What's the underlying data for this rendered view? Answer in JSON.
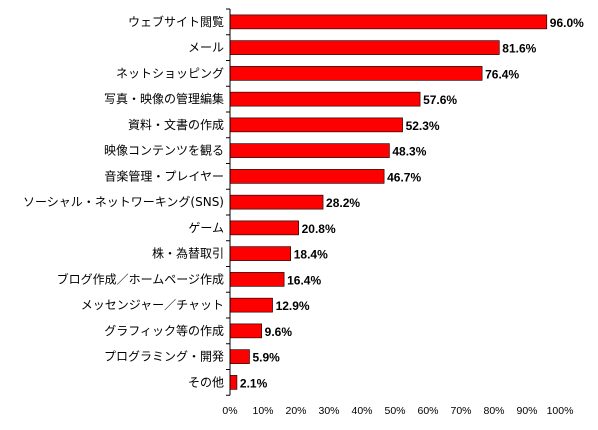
{
  "chart_data": {
    "type": "bar",
    "orientation": "horizontal",
    "categories": [
      "ウェブサイト閲覧",
      "メール",
      "ネットショッピング",
      "写真・映像の管理編集",
      "資料・文書の作成",
      "映像コンテンツを観る",
      "音楽管理・プレイヤー",
      "ソーシャル・ネットワーキング(SNS)",
      "ゲーム",
      "株・為替取引",
      "ブログ作成／ホームページ作成",
      "メッセンジャー／チャット",
      "グラフィック等の作成",
      "プログラミング・開発",
      "その他"
    ],
    "values": [
      96.0,
      81.6,
      76.4,
      57.6,
      52.3,
      48.3,
      46.7,
      28.2,
      20.8,
      18.4,
      16.4,
      12.9,
      9.6,
      5.9,
      2.1
    ],
    "value_labels": [
      "96.0%",
      "81.6%",
      "76.4%",
      "57.6%",
      "52.3%",
      "48.3%",
      "46.7%",
      "28.2%",
      "20.8%",
      "18.4%",
      "16.4%",
      "12.9%",
      "9.6%",
      "5.9%",
      "2.1%"
    ],
    "x_ticks": [
      "0%",
      "10%",
      "20%",
      "30%",
      "40%",
      "50%",
      "60%",
      "70%",
      "80%",
      "90%",
      "100%"
    ],
    "xlim": [
      0,
      100
    ],
    "title": "",
    "xlabel": "",
    "ylabel": "",
    "grid": false,
    "legend": false,
    "bar_color": "#ff0000",
    "bar_edge_color": "#000000"
  }
}
